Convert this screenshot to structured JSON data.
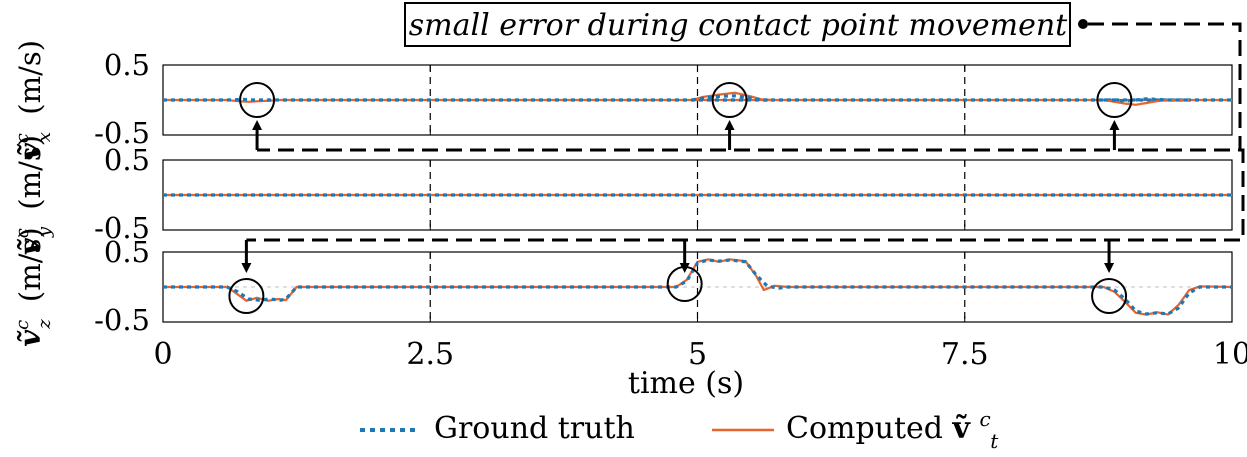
{
  "annotation": {
    "text": "small error during contact point movement"
  },
  "legend": {
    "ground_truth": "Ground truth",
    "computed_prefix": "Computed ",
    "computed_symbol": "ṽ",
    "computed_sub": "t",
    "computed_sup": "c"
  },
  "colors": {
    "ground_truth": "#1f77b4",
    "computed": "#e6642e",
    "axes": "#000000",
    "gridline": "#bfbfbf"
  },
  "chart_data": {
    "type": "line",
    "xlabel": "time (s)",
    "xlim": [
      0,
      10
    ],
    "xticks": [
      0,
      2.5,
      5,
      7.5,
      10
    ],
    "xtick_labels": [
      "0",
      "2.5",
      "5",
      "7.5",
      "10"
    ],
    "vlines": [
      2.5,
      5,
      7.5
    ],
    "panels": [
      {
        "ylabel_symbol": "ṽ",
        "ylabel_sub": "x",
        "ylabel_sup": "c",
        "ylabel_unit": "(m/s)",
        "ylim": [
          -0.5,
          0.5
        ],
        "yticks": [
          "0.5",
          "-0.5"
        ],
        "markers_x": [
          0.88,
          5.3,
          8.9
        ],
        "series": [
          {
            "name": "Ground truth",
            "x": [
              0,
              0.6,
              0.75,
              0.85,
              1.0,
              10
            ],
            "y": [
              0,
              0,
              0.01,
              0,
              0,
              0
            ]
          },
          {
            "name": "Computed",
            "x": [
              0,
              0.6,
              0.7,
              0.8,
              0.9,
              1.0,
              1.1,
              1.2,
              10
            ],
            "y": [
              0,
              0,
              -0.02,
              -0.03,
              -0.02,
              -0.01,
              0,
              0,
              0
            ]
          }
        ],
        "series_extra": [
          {
            "x": [
              4.95,
              5.05,
              5.2,
              5.35,
              5.5,
              5.6,
              5.7
            ],
            "y_gt": [
              0,
              0.03,
              0.06,
              0.07,
              0.03,
              0,
              0
            ],
            "y_c": [
              0,
              0.05,
              0.09,
              0.12,
              0.06,
              0.01,
              0
            ]
          },
          {
            "x": [
              8.8,
              8.9,
              9.0,
              9.1,
              9.2,
              9.3,
              9.4,
              9.6
            ],
            "y_gt": [
              0,
              0,
              -0.02,
              0,
              0.02,
              0.01,
              0,
              0
            ],
            "y_c": [
              0,
              -0.03,
              -0.06,
              -0.08,
              -0.05,
              -0.02,
              0,
              0
            ]
          }
        ]
      },
      {
        "ylabel_symbol": "ṽ",
        "ylabel_sub": "y",
        "ylabel_sup": "c",
        "ylabel_unit": "(m/s)",
        "ylim": [
          -0.5,
          0.5
        ],
        "yticks": [
          "0.5",
          "-0.5"
        ],
        "markers_x": [],
        "series": [
          {
            "name": "Ground truth",
            "x": [
              0,
              10
            ],
            "y": [
              0,
              0
            ]
          },
          {
            "name": "Computed",
            "x": [
              0,
              10
            ],
            "y": [
              0,
              0
            ]
          }
        ],
        "series_extra": []
      },
      {
        "ylabel_symbol": "ṽ",
        "ylabel_sub": "z",
        "ylabel_sup": "c",
        "ylabel_unit": "(m/s)",
        "ylim": [
          -0.5,
          0.5
        ],
        "yticks": [
          "0.5",
          "-0.5"
        ],
        "markers_x": [
          0.78,
          4.88,
          8.85
        ],
        "series": [
          {
            "name": "Ground truth",
            "x": [
              0,
              0.6,
              0.7,
              0.8,
              0.9,
              1.0,
              1.1,
              1.15,
              1.25,
              4.8,
              4.9,
              5.0,
              5.1,
              5.2,
              5.3,
              5.45,
              5.55,
              5.65,
              5.75,
              5.85,
              8.8,
              8.9,
              9.0,
              9.1,
              9.2,
              9.3,
              9.4,
              9.5,
              9.6,
              9.7,
              10
            ],
            "y": [
              0,
              0,
              -0.08,
              -0.2,
              -0.22,
              -0.2,
              -0.22,
              -0.2,
              0,
              0,
              0.1,
              0.4,
              0.45,
              0.43,
              0.45,
              0.42,
              0.2,
              0.02,
              -0.02,
              0,
              0,
              -0.05,
              -0.2,
              -0.4,
              -0.45,
              -0.43,
              -0.45,
              -0.35,
              -0.1,
              0,
              0
            ]
          },
          {
            "name": "Computed",
            "x": [
              0,
              0.6,
              0.68,
              0.78,
              0.88,
              0.98,
              1.08,
              1.15,
              1.25,
              4.8,
              4.9,
              5.0,
              5.1,
              5.2,
              5.3,
              5.45,
              5.55,
              5.62,
              5.72,
              5.85,
              8.8,
              8.9,
              9.0,
              9.1,
              9.2,
              9.3,
              9.4,
              9.5,
              9.6,
              9.7,
              10
            ],
            "y": [
              0,
              0,
              -0.1,
              -0.23,
              -0.18,
              -0.23,
              -0.2,
              -0.22,
              0,
              0,
              0.12,
              0.42,
              0.46,
              0.42,
              0.46,
              0.43,
              0.18,
              -0.05,
              0.02,
              0,
              0,
              -0.08,
              -0.25,
              -0.43,
              -0.46,
              -0.42,
              -0.46,
              -0.3,
              -0.05,
              0.01,
              0
            ]
          }
        ],
        "series_extra": []
      }
    ],
    "legend_placement": "bottom"
  }
}
